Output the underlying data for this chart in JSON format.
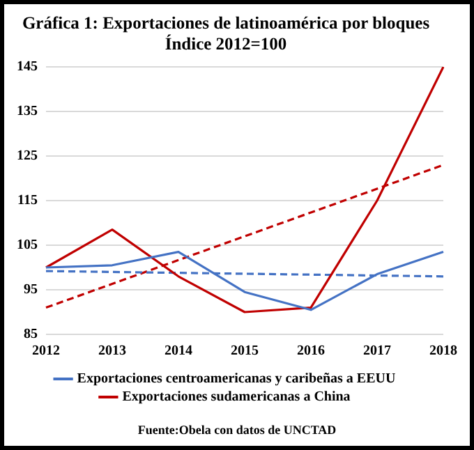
{
  "chart_data": {
    "type": "line",
    "title": "Gráfica 1: Exportaciones de latinoamérica por bloques",
    "subtitle": "Índice 2012=100",
    "categories": [
      "2012",
      "2013",
      "2014",
      "2015",
      "2016",
      "2017",
      "2018"
    ],
    "series": [
      {
        "name": "Exportaciones centroamericanas y caribeñas a EEUU",
        "color": "#4472c4",
        "values": [
          100,
          100.5,
          103.5,
          94.5,
          90.5,
          98.5,
          103.5
        ]
      },
      {
        "name": "Exportaciones sudamericanas a China",
        "color": "#c00000",
        "values": [
          100,
          108.5,
          98,
          90,
          91,
          115,
          145
        ]
      },
      {
        "color": "#4472c4",
        "line_style": "dashed",
        "values": [
          99.2,
          null,
          null,
          null,
          null,
          null,
          98
        ]
      },
      {
        "color": "#c00000",
        "line_style": "dashed",
        "values": [
          91,
          null,
          null,
          null,
          null,
          null,
          123
        ]
      }
    ],
    "ylim": [
      85,
      145
    ],
    "yticks": [
      85,
      95,
      105,
      115,
      125,
      135,
      145
    ],
    "grid": "y",
    "legend": "bottom",
    "marker": "none",
    "line_style": "solid",
    "annotations": [
      "Fuente:Obela con datos de UNCTAD"
    ]
  }
}
